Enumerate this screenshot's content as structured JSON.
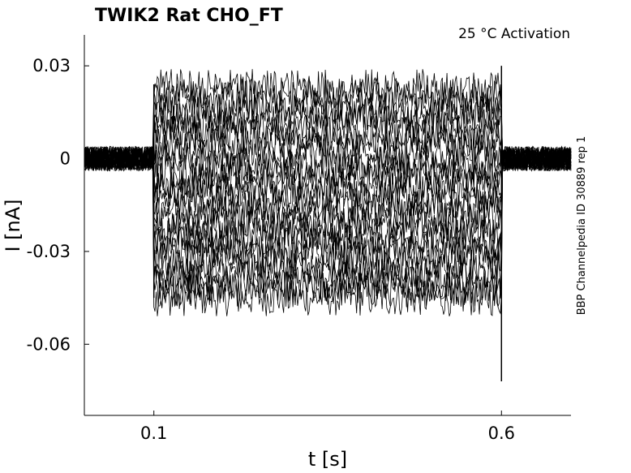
{
  "chart_data": {
    "type": "line",
    "title": "TWIK2  Rat  CHO_FT",
    "annotation": "25 °C  Activation",
    "side_label": "BBP Channelpedia ID 30889 rep 1",
    "xlabel": "t [s]",
    "ylabel": "I [nA]",
    "xlim": [
      0.0,
      0.7
    ],
    "ylim": [
      -0.083,
      0.04
    ],
    "xticks": [
      0.1,
      0.6
    ],
    "xtick_labels": [
      "0.1",
      "0.6"
    ],
    "yticks": [
      0.03,
      0.0,
      -0.03,
      -0.06
    ],
    "ytick_labels": [
      "0.03",
      "0",
      "-0.03",
      "-0.06"
    ],
    "grid": false,
    "stimulus": {
      "on": 0.1,
      "off": 0.6
    },
    "baseline_noise_amplitude": 0.004,
    "step_noise_amplitude": 0.006,
    "series": [
      {
        "steady": -0.045
      },
      {
        "steady": -0.042
      },
      {
        "steady": -0.04
      },
      {
        "steady": -0.037
      },
      {
        "steady": -0.034
      },
      {
        "steady": -0.031
      },
      {
        "steady": -0.028
      },
      {
        "steady": -0.025
      },
      {
        "steady": -0.022
      },
      {
        "steady": -0.019
      },
      {
        "steady": -0.016
      },
      {
        "steady": -0.013
      },
      {
        "steady": -0.01
      },
      {
        "steady": -0.007
      },
      {
        "steady": -0.004
      },
      {
        "steady": -0.001
      },
      {
        "steady": 0.002
      },
      {
        "steady": 0.005
      },
      {
        "steady": 0.008
      },
      {
        "steady": 0.011
      },
      {
        "steady": 0.014
      },
      {
        "steady": 0.017
      },
      {
        "steady": 0.02
      },
      {
        "steady": 0.023
      }
    ],
    "spikes": [
      {
        "t": 0.1,
        "min": -0.045,
        "max": 0.024
      },
      {
        "t": 0.6,
        "min": -0.072,
        "max": 0.03
      }
    ]
  }
}
